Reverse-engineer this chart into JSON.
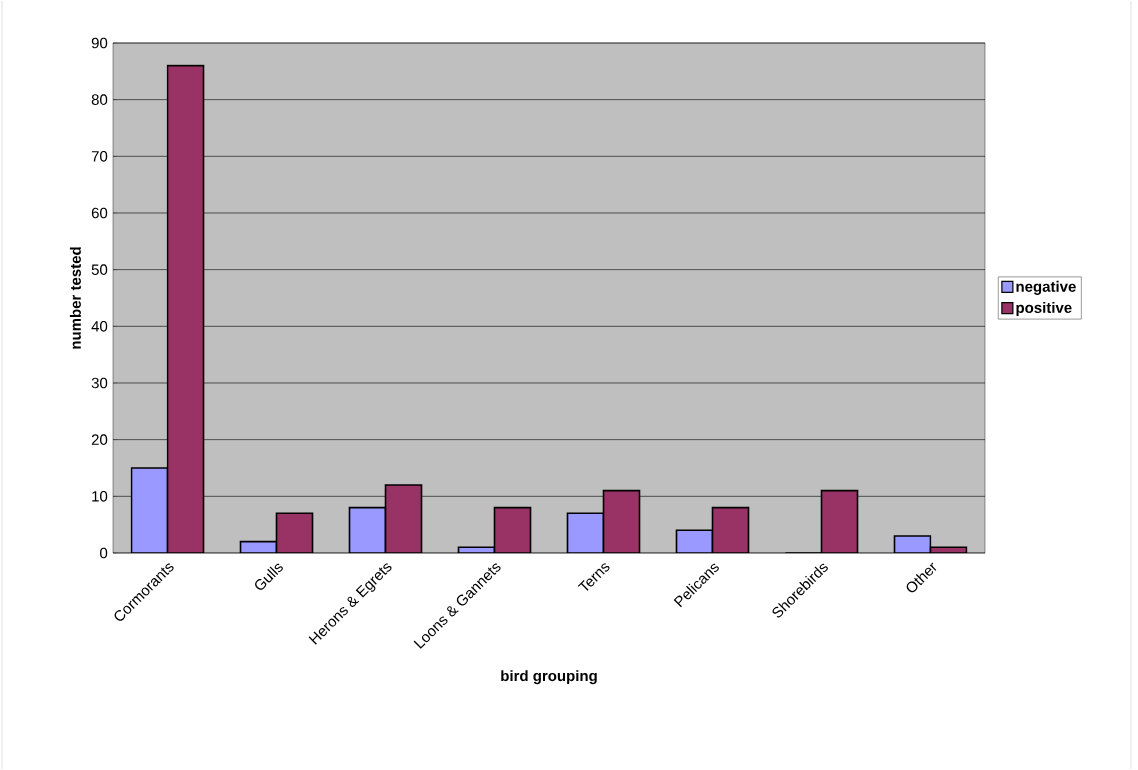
{
  "chart_data": {
    "type": "bar",
    "xlabel": "bird grouping",
    "ylabel": "number tested",
    "categories": [
      "Cormorants",
      "Gulls",
      "Herons & Egrets",
      "Loons & Gannets",
      "Terns",
      "Pelicans",
      "Shorebirds",
      "Other"
    ],
    "series": [
      {
        "name": "negative",
        "color": "#9999ff",
        "values": [
          15,
          2,
          8,
          1,
          7,
          4,
          0,
          3
        ]
      },
      {
        "name": "positive",
        "color": "#993366",
        "values": [
          86,
          7,
          12,
          8,
          11,
          8,
          11,
          1
        ]
      }
    ],
    "ylim": [
      0,
      90
    ],
    "yticks": [
      0,
      10,
      20,
      30,
      40,
      50,
      60,
      70,
      80,
      90
    ],
    "grid": "y",
    "legend": "right"
  }
}
